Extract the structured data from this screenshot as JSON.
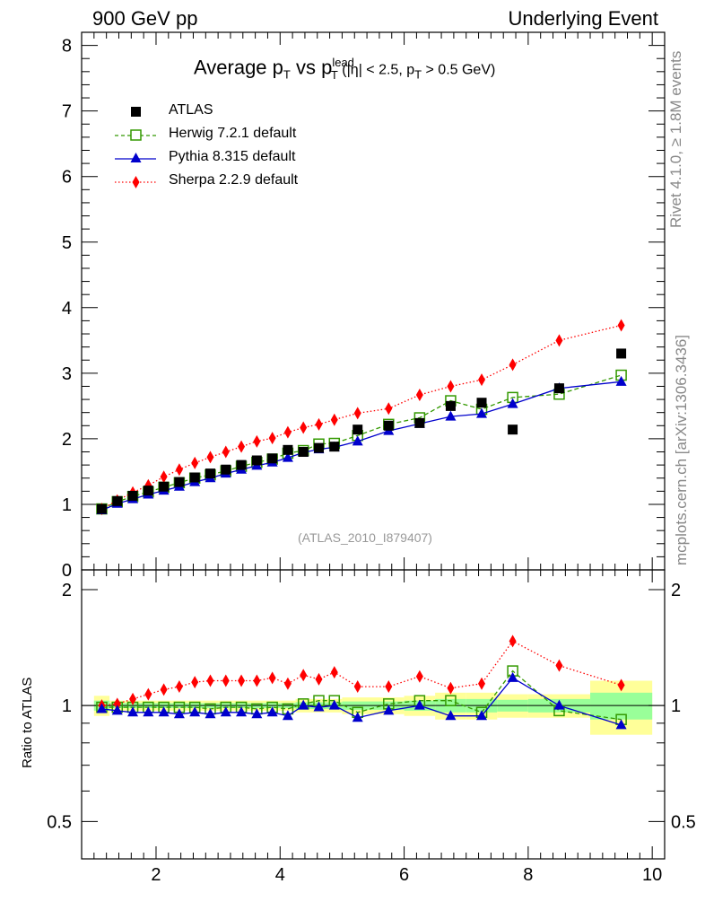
{
  "header": {
    "left": "900 GeV pp",
    "right": "Underlying Event"
  },
  "side_labels": {
    "rivet": "Rivet 4.1.0, ≥ 1.8M events",
    "reference": "mcplots.cern.ch [arXiv:1306.3436]"
  },
  "analysis_tag": "(ATLAS_2010_I879407)",
  "title": {
    "main_prefix": "Average p",
    "main_sub1": "T",
    "main_mid": " vs p",
    "main_sup": "lead",
    "main_sub2": "T",
    "cut_open": " (|η| < 2.5, p",
    "cut_sub": "T",
    "cut_close": " > 0.5 GeV)"
  },
  "colors": {
    "atlas": "#000000",
    "herwig": "#339900",
    "pythia": "#0000cc",
    "sherpa": "#ff0000",
    "band_outer": "#ffff99",
    "band_inner": "#99ff99"
  },
  "chart_data": [
    {
      "type": "line",
      "panel": "main",
      "xlim": [
        0.8,
        10.2
      ],
      "ylim": [
        0,
        8.2
      ],
      "x_ticks": [
        2,
        4,
        6,
        8,
        10
      ],
      "y_ticks": [
        0,
        1,
        2,
        3,
        4,
        5,
        6,
        7,
        8
      ],
      "y_tick_labels": [
        "0",
        "1",
        "2",
        "3",
        "4",
        "5",
        "6",
        "7",
        "8"
      ],
      "legend": [
        {
          "name": "ATLAS",
          "marker": "square-filled",
          "color_key": "atlas"
        },
        {
          "name": "Herwig 7.2.1 default",
          "marker": "square-open",
          "color_key": "herwig",
          "dash": "dashed"
        },
        {
          "name": "Pythia 8.315 default",
          "marker": "triangle",
          "color_key": "pythia",
          "dash": "solid"
        },
        {
          "name": "Sherpa 2.2.9 default",
          "marker": "diamond",
          "color_key": "sherpa",
          "dash": "dotted"
        }
      ],
      "x": [
        1.125,
        1.375,
        1.625,
        1.875,
        2.125,
        2.375,
        2.625,
        2.875,
        3.125,
        3.375,
        3.625,
        3.875,
        4.125,
        4.375,
        4.625,
        4.875,
        5.25,
        5.75,
        6.25,
        6.75,
        7.25,
        7.75,
        8.5,
        9.5
      ],
      "series": [
        {
          "name": "ATLAS",
          "values": [
            0.93,
            1.05,
            1.13,
            1.21,
            1.27,
            1.34,
            1.41,
            1.47,
            1.53,
            1.6,
            1.67,
            1.7,
            1.83,
            1.8,
            1.86,
            1.88,
            2.14,
            2.2,
            2.24,
            2.5,
            2.55,
            2.14,
            2.77,
            3.3
          ]
        },
        {
          "name": "Herwig 7.2.1 default",
          "values": [
            0.93,
            1.04,
            1.12,
            1.19,
            1.26,
            1.33,
            1.4,
            1.45,
            1.51,
            1.58,
            1.64,
            1.69,
            1.78,
            1.82,
            1.92,
            1.93,
            2.05,
            2.22,
            2.32,
            2.58,
            2.45,
            2.63,
            2.68,
            2.97
          ]
        },
        {
          "name": "Pythia 8.315 default",
          "values": [
            0.91,
            1.01,
            1.08,
            1.15,
            1.21,
            1.27,
            1.34,
            1.4,
            1.47,
            1.53,
            1.59,
            1.64,
            1.71,
            1.79,
            1.84,
            1.87,
            1.96,
            2.12,
            2.23,
            2.34,
            2.38,
            2.53,
            2.77,
            2.87
          ]
        },
        {
          "name": "Sherpa 2.2.9 default",
          "values": [
            0.93,
            1.06,
            1.18,
            1.29,
            1.42,
            1.53,
            1.63,
            1.72,
            1.8,
            1.88,
            1.96,
            2.01,
            2.1,
            2.17,
            2.22,
            2.29,
            2.39,
            2.46,
            2.67,
            2.8,
            2.9,
            3.13,
            3.5,
            3.73
          ]
        }
      ]
    },
    {
      "type": "line",
      "panel": "ratio",
      "ylabel": "Ratio to ATLAS",
      "xlim": [
        0.8,
        10.2
      ],
      "ylim": [
        0.4,
        2.25
      ],
      "x_ticks": [
        2,
        4,
        6,
        8,
        10
      ],
      "x_tick_labels": [
        "2",
        "4",
        "6",
        "8",
        "10"
      ],
      "y_ticks": [
        0.5,
        1,
        2
      ],
      "y_tick_labels": [
        "0.5",
        "1",
        "2"
      ],
      "x": [
        1.125,
        1.375,
        1.625,
        1.875,
        2.125,
        2.375,
        2.625,
        2.875,
        3.125,
        3.375,
        3.625,
        3.875,
        4.125,
        4.375,
        4.625,
        4.875,
        5.25,
        5.75,
        6.25,
        6.75,
        7.25,
        7.75,
        8.5,
        9.5
      ],
      "bin_edges": [
        1.0,
        1.25,
        1.5,
        1.75,
        2.0,
        2.25,
        2.5,
        2.75,
        3.0,
        3.25,
        3.5,
        3.75,
        4.0,
        4.25,
        4.5,
        4.75,
        5.0,
        5.5,
        6.0,
        6.5,
        7.0,
        7.5,
        8.0,
        9.0,
        10.0
      ],
      "band_outer": [
        0.06,
        0.03,
        0.03,
        0.03,
        0.03,
        0.03,
        0.03,
        0.03,
        0.03,
        0.03,
        0.03,
        0.03,
        0.03,
        0.04,
        0.04,
        0.04,
        0.05,
        0.05,
        0.06,
        0.08,
        0.08,
        0.07,
        0.07,
        0.16
      ],
      "band_inner": [
        0.03,
        0.015,
        0.015,
        0.015,
        0.015,
        0.015,
        0.015,
        0.015,
        0.015,
        0.015,
        0.015,
        0.015,
        0.015,
        0.02,
        0.02,
        0.02,
        0.025,
        0.025,
        0.03,
        0.04,
        0.04,
        0.035,
        0.04,
        0.08
      ],
      "series": [
        {
          "name": "Herwig 7.2.1 default",
          "values": [
            0.99,
            0.99,
            0.99,
            0.99,
            0.99,
            0.99,
            0.99,
            0.98,
            0.99,
            0.99,
            0.98,
            0.99,
            0.98,
            1.01,
            1.03,
            1.03,
            0.96,
            1.01,
            1.03,
            1.03,
            0.96,
            1.23,
            0.97,
            0.92
          ]
        },
        {
          "name": "Pythia 8.315 default",
          "values": [
            0.98,
            0.97,
            0.96,
            0.96,
            0.96,
            0.95,
            0.96,
            0.95,
            0.96,
            0.96,
            0.95,
            0.96,
            0.94,
            1.0,
            0.99,
            1.0,
            0.93,
            0.97,
            1.0,
            0.94,
            0.94,
            1.18,
            1.0,
            0.89
          ]
        },
        {
          "name": "Sherpa 2.2.9 default",
          "values": [
            1.0,
            1.01,
            1.04,
            1.07,
            1.1,
            1.12,
            1.15,
            1.16,
            1.16,
            1.16,
            1.16,
            1.18,
            1.14,
            1.2,
            1.17,
            1.22,
            1.12,
            1.12,
            1.19,
            1.11,
            1.14,
            1.47,
            1.27,
            1.13
          ]
        }
      ]
    }
  ]
}
